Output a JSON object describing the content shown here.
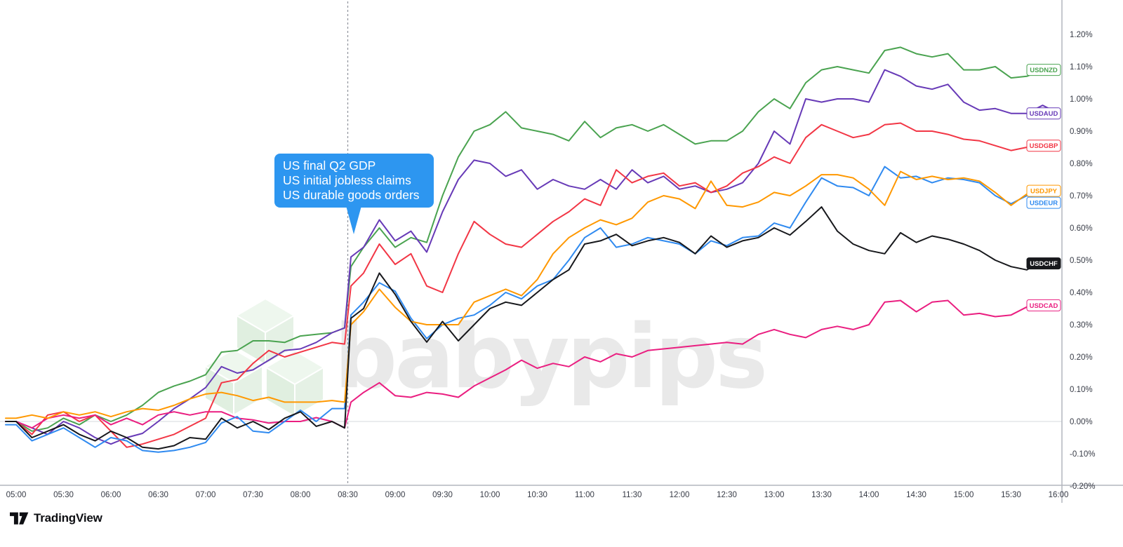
{
  "chart": {
    "callout": {
      "lines": [
        "US final Q2 GDP",
        "US initial jobless claims",
        "US durable goods orders"
      ],
      "bg_color": "#2d96f0",
      "text_color": "#ffffff"
    },
    "watermark": {
      "text": "babypips",
      "text_color": "#e9e9e9",
      "cube_color": "#e5f1e5"
    },
    "chart_data": {
      "type": "line",
      "title": "",
      "xlabel": "",
      "ylabel": "",
      "legend_position": "right-edge-labels",
      "grid": "zero-line-only",
      "ylim": [
        -0.2,
        1.2
      ],
      "y_ticks": [
        "1.20%",
        "1.10%",
        "1.00%",
        "0.90%",
        "0.80%",
        "0.70%",
        "0.60%",
        "0.50%",
        "0.40%",
        "0.30%",
        "0.20%",
        "0.10%",
        "0.00%",
        "-0.10%",
        "-0.20%"
      ],
      "x_ticks": [
        "05:00",
        "05:30",
        "06:00",
        "06:30",
        "07:00",
        "07:30",
        "08:00",
        "08:30",
        "09:00",
        "09:30",
        "10:00",
        "10:30",
        "11:00",
        "11:30",
        "12:00",
        "12:30",
        "13:00",
        "13:30",
        "14:00",
        "14:30",
        "15:00",
        "15:30",
        "16:00"
      ],
      "event_time": "08:30",
      "event_line_color": "#8f939c",
      "zero_line_color": "#d6d8dc",
      "axis_line_color": "#b2b5be",
      "axis_text_color": "#363a45",
      "times": [
        "05:00",
        "05:10",
        "05:20",
        "05:30",
        "05:40",
        "05:50",
        "06:00",
        "06:10",
        "06:20",
        "06:30",
        "06:40",
        "06:50",
        "07:00",
        "07:10",
        "07:20",
        "07:30",
        "07:40",
        "07:50",
        "08:00",
        "08:10",
        "08:20",
        "08:28",
        "08:32",
        "08:40",
        "08:50",
        "09:00",
        "09:10",
        "09:20",
        "09:30",
        "09:40",
        "09:50",
        "10:00",
        "10:10",
        "10:20",
        "10:30",
        "10:40",
        "10:50",
        "11:00",
        "11:10",
        "11:20",
        "11:30",
        "11:40",
        "11:50",
        "12:00",
        "12:10",
        "12:20",
        "12:30",
        "12:40",
        "12:50",
        "13:00",
        "13:10",
        "13:20",
        "13:30",
        "13:40",
        "13:50",
        "14:00",
        "14:10",
        "14:20",
        "14:30",
        "14:40",
        "14:50",
        "15:00",
        "15:10",
        "15:20",
        "15:30",
        "15:40",
        "15:50",
        "16:00"
      ],
      "unit": "percent",
      "series": [
        {
          "name": "USDNZD",
          "color": "#4aa350",
          "label_fill": "outline",
          "values": [
            0.0,
            -0.03,
            -0.02,
            0.01,
            -0.01,
            0.02,
            0.0,
            0.02,
            0.05,
            0.09,
            0.11,
            0.125,
            0.145,
            0.215,
            0.22,
            0.25,
            0.25,
            0.245,
            0.265,
            0.27,
            0.275,
            0.29,
            0.48,
            0.54,
            0.6,
            0.54,
            0.57,
            0.555,
            0.7,
            0.82,
            0.9,
            0.92,
            0.96,
            0.91,
            0.9,
            0.89,
            0.87,
            0.93,
            0.88,
            0.91,
            0.92,
            0.9,
            0.92,
            0.89,
            0.86,
            0.87,
            0.87,
            0.9,
            0.96,
            1.0,
            0.97,
            1.05,
            1.09,
            1.1,
            1.09,
            1.08,
            1.15,
            1.16,
            1.14,
            1.13,
            1.14,
            1.09,
            1.09,
            1.1,
            1.065,
            1.07,
            1.09,
            1.09
          ]
        },
        {
          "name": "USDAUD",
          "color": "#673ab7",
          "label_fill": "outline",
          "values": [
            0.0,
            -0.02,
            -0.04,
            0.0,
            -0.02,
            -0.05,
            -0.07,
            -0.05,
            -0.037,
            0.0,
            0.04,
            0.07,
            0.105,
            0.17,
            0.15,
            0.16,
            0.19,
            0.22,
            0.225,
            0.245,
            0.275,
            0.29,
            0.51,
            0.54,
            0.625,
            0.56,
            0.59,
            0.525,
            0.65,
            0.75,
            0.81,
            0.8,
            0.76,
            0.78,
            0.72,
            0.75,
            0.73,
            0.72,
            0.75,
            0.72,
            0.78,
            0.74,
            0.76,
            0.72,
            0.73,
            0.71,
            0.72,
            0.74,
            0.8,
            0.9,
            0.86,
            1.0,
            0.99,
            1.0,
            1.0,
            0.99,
            1.09,
            1.07,
            1.04,
            1.03,
            1.045,
            0.99,
            0.965,
            0.97,
            0.955,
            0.955,
            0.98,
            0.955
          ]
        },
        {
          "name": "USDGBP",
          "color": "#f23645",
          "label_fill": "outline",
          "values": [
            0.0,
            -0.04,
            0.02,
            0.03,
            0.0,
            0.02,
            -0.03,
            -0.08,
            -0.07,
            -0.055,
            -0.04,
            -0.015,
            0.01,
            0.12,
            0.13,
            0.18,
            0.22,
            0.2,
            0.215,
            0.23,
            0.245,
            0.24,
            0.42,
            0.46,
            0.55,
            0.487,
            0.52,
            0.42,
            0.4,
            0.52,
            0.62,
            0.58,
            0.55,
            0.54,
            0.58,
            0.62,
            0.65,
            0.69,
            0.67,
            0.78,
            0.74,
            0.76,
            0.77,
            0.73,
            0.74,
            0.71,
            0.73,
            0.77,
            0.79,
            0.82,
            0.8,
            0.88,
            0.92,
            0.9,
            0.88,
            0.89,
            0.92,
            0.925,
            0.9,
            0.9,
            0.89,
            0.875,
            0.87,
            0.855,
            0.84,
            0.85,
            0.865,
            0.855
          ]
        },
        {
          "name": "USDCAD",
          "color": "#ea1e80",
          "label_fill": "outline",
          "values": [
            0.0,
            -0.02,
            0.01,
            0.02,
            0.01,
            0.02,
            -0.01,
            0.01,
            -0.01,
            0.02,
            0.03,
            0.02,
            0.03,
            0.03,
            0.01,
            0.005,
            -0.005,
            0.0,
            0.0,
            0.012,
            0.0,
            -0.02,
            0.06,
            0.09,
            0.12,
            0.08,
            0.075,
            0.09,
            0.085,
            0.075,
            0.11,
            0.135,
            0.16,
            0.19,
            0.165,
            0.18,
            0.17,
            0.2,
            0.185,
            0.21,
            0.2,
            0.22,
            0.225,
            0.23,
            0.235,
            0.24,
            0.245,
            0.24,
            0.27,
            0.285,
            0.27,
            0.26,
            0.285,
            0.295,
            0.285,
            0.3,
            0.37,
            0.375,
            0.34,
            0.37,
            0.375,
            0.33,
            0.335,
            0.325,
            0.33,
            0.355,
            0.37,
            0.36
          ]
        },
        {
          "name": "USDEUR",
          "color": "#2f8af0",
          "label_fill": "outline",
          "values": [
            -0.01,
            -0.06,
            -0.04,
            -0.02,
            -0.05,
            -0.08,
            -0.05,
            -0.06,
            -0.09,
            -0.095,
            -0.09,
            -0.08,
            -0.065,
            -0.005,
            0.015,
            -0.03,
            -0.035,
            0.0,
            0.035,
            0.0,
            0.04,
            0.04,
            0.33,
            0.37,
            0.43,
            0.404,
            0.32,
            0.257,
            0.3,
            0.32,
            0.33,
            0.36,
            0.4,
            0.38,
            0.42,
            0.44,
            0.5,
            0.57,
            0.6,
            0.54,
            0.55,
            0.57,
            0.56,
            0.55,
            0.52,
            0.56,
            0.545,
            0.57,
            0.575,
            0.615,
            0.6,
            0.68,
            0.755,
            0.73,
            0.725,
            0.7,
            0.79,
            0.755,
            0.76,
            0.74,
            0.755,
            0.75,
            0.74,
            0.7,
            0.675,
            0.7,
            0.685,
            0.69
          ]
        },
        {
          "name": "USDJPY",
          "color": "#ff9800",
          "label_fill": "outline",
          "values": [
            0.01,
            0.02,
            0.01,
            0.03,
            0.02,
            0.03,
            0.015,
            0.03,
            0.04,
            0.035,
            0.05,
            0.07,
            0.085,
            0.09,
            0.08,
            0.065,
            0.075,
            0.06,
            0.06,
            0.06,
            0.065,
            0.06,
            0.3,
            0.34,
            0.41,
            0.354,
            0.31,
            0.3,
            0.3,
            0.3,
            0.37,
            0.39,
            0.41,
            0.39,
            0.44,
            0.52,
            0.57,
            0.6,
            0.625,
            0.61,
            0.63,
            0.68,
            0.7,
            0.69,
            0.66,
            0.745,
            0.67,
            0.665,
            0.68,
            0.71,
            0.7,
            0.73,
            0.765,
            0.765,
            0.755,
            0.72,
            0.67,
            0.775,
            0.75,
            0.76,
            0.75,
            0.755,
            0.745,
            0.71,
            0.67,
            0.705,
            0.71,
            0.715
          ]
        },
        {
          "name": "USDCHF",
          "color": "#17181c",
          "label_fill": "solid",
          "values": [
            0.0,
            -0.05,
            -0.03,
            -0.01,
            -0.04,
            -0.06,
            -0.03,
            -0.05,
            -0.08,
            -0.085,
            -0.075,
            -0.05,
            -0.055,
            0.01,
            -0.02,
            0.0,
            -0.025,
            0.01,
            0.03,
            -0.015,
            0.0,
            -0.02,
            0.32,
            0.35,
            0.46,
            0.394,
            0.31,
            0.246,
            0.31,
            0.25,
            0.3,
            0.35,
            0.37,
            0.36,
            0.4,
            0.44,
            0.47,
            0.55,
            0.56,
            0.58,
            0.545,
            0.56,
            0.57,
            0.555,
            0.52,
            0.575,
            0.54,
            0.56,
            0.57,
            0.6,
            0.578,
            0.62,
            0.665,
            0.59,
            0.55,
            0.53,
            0.52,
            0.585,
            0.555,
            0.575,
            0.565,
            0.55,
            0.53,
            0.5,
            0.48,
            0.47,
            0.5,
            0.49
          ]
        }
      ]
    }
  },
  "footer": {
    "brand": "TradingView"
  }
}
